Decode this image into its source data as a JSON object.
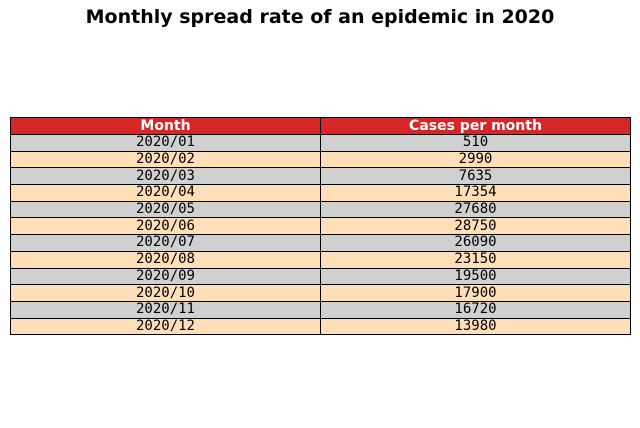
{
  "title": "Monthly spread rate of an epidemic in 2020",
  "colors": {
    "header_bg": "#d62728",
    "row_even_bg": "#d0d0d0",
    "row_odd_bg": "#ffdfb8"
  },
  "chart_data": {
    "type": "table",
    "title": "Monthly spread rate of an epidemic in 2020",
    "columns": [
      "Month",
      "Cases per month"
    ],
    "rows": [
      [
        "2020/01",
        "510"
      ],
      [
        "2020/02",
        "2990"
      ],
      [
        "2020/03",
        "7635"
      ],
      [
        "2020/04",
        "17354"
      ],
      [
        "2020/05",
        "27680"
      ],
      [
        "2020/06",
        "28750"
      ],
      [
        "2020/07",
        "26090"
      ],
      [
        "2020/08",
        "23150"
      ],
      [
        "2020/09",
        "19500"
      ],
      [
        "2020/10",
        "17900"
      ],
      [
        "2020/11",
        "16720"
      ],
      [
        "2020/12",
        "13980"
      ]
    ]
  }
}
